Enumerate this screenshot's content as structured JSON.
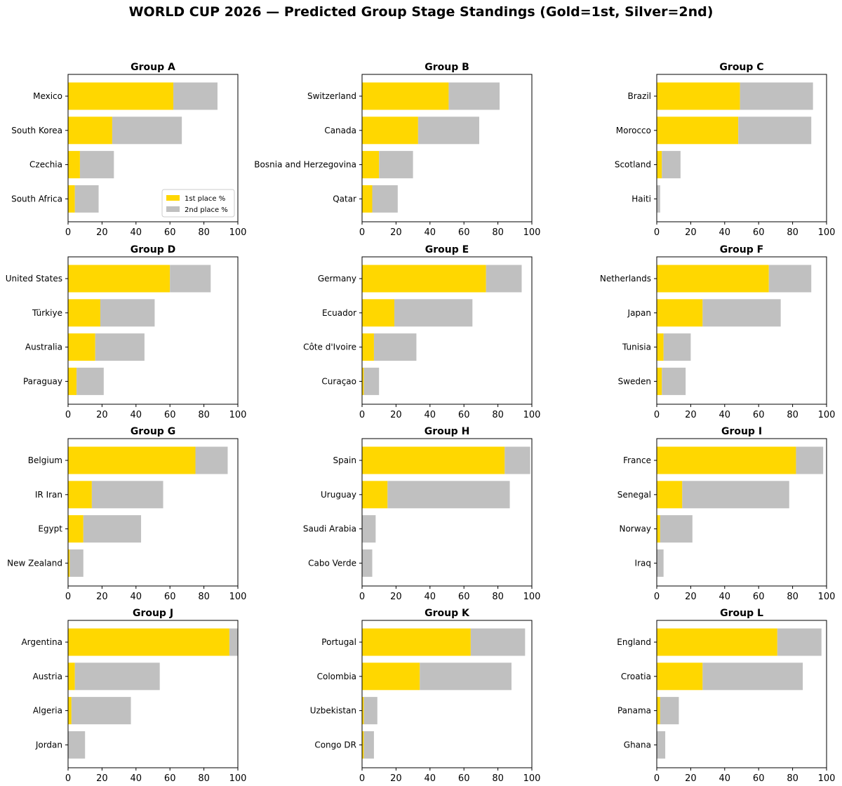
{
  "chart_data": {
    "title": "WORLD CUP 2026 — Predicted Group Stage Standings (Gold=1st, Silver=2nd)",
    "type": "bar",
    "orientation": "horizontal",
    "stacked": true,
    "xlim": [
      0,
      100
    ],
    "xticks": [
      0,
      20,
      40,
      60,
      80,
      100
    ],
    "series_names": [
      "1st place %",
      "2nd place %"
    ],
    "colors": {
      "first": "#FFD700",
      "second": "#C0C0C0"
    },
    "legend_position": "lower-right, Group A panel",
    "groups": [
      {
        "name": "Group A",
        "teams": [
          {
            "team": "Mexico",
            "first": 62,
            "second": 26
          },
          {
            "team": "South Korea",
            "first": 26,
            "second": 41
          },
          {
            "team": "Czechia",
            "first": 7,
            "second": 20
          },
          {
            "team": "South Africa",
            "first": 4,
            "second": 14
          }
        ]
      },
      {
        "name": "Group B",
        "teams": [
          {
            "team": "Switzerland",
            "first": 51,
            "second": 30
          },
          {
            "team": "Canada",
            "first": 33,
            "second": 36
          },
          {
            "team": "Bosnia and Herzegovina",
            "first": 10,
            "second": 20
          },
          {
            "team": "Qatar",
            "first": 6,
            "second": 15
          }
        ]
      },
      {
        "name": "Group C",
        "teams": [
          {
            "team": "Brazil",
            "first": 49,
            "second": 43
          },
          {
            "team": "Morocco",
            "first": 48,
            "second": 43
          },
          {
            "team": "Scotland",
            "first": 3,
            "second": 11
          },
          {
            "team": "Haiti",
            "first": 0,
            "second": 2
          }
        ]
      },
      {
        "name": "Group D",
        "teams": [
          {
            "team": "United States",
            "first": 60,
            "second": 24
          },
          {
            "team": "Türkiye",
            "first": 19,
            "second": 32
          },
          {
            "team": "Australia",
            "first": 16,
            "second": 29
          },
          {
            "team": "Paraguay",
            "first": 5,
            "second": 16
          }
        ]
      },
      {
        "name": "Group E",
        "teams": [
          {
            "team": "Germany",
            "first": 73,
            "second": 21
          },
          {
            "team": "Ecuador",
            "first": 19,
            "second": 46
          },
          {
            "team": "Côte d'Ivoire",
            "first": 7,
            "second": 25
          },
          {
            "team": "Curaçao",
            "first": 1,
            "second": 9
          }
        ]
      },
      {
        "name": "Group F",
        "teams": [
          {
            "team": "Netherlands",
            "first": 66,
            "second": 25
          },
          {
            "team": "Japan",
            "first": 27,
            "second": 46
          },
          {
            "team": "Tunisia",
            "first": 4,
            "second": 16
          },
          {
            "team": "Sweden",
            "first": 3,
            "second": 14
          }
        ]
      },
      {
        "name": "Group G",
        "teams": [
          {
            "team": "Belgium",
            "first": 75,
            "second": 19
          },
          {
            "team": "IR Iran",
            "first": 14,
            "second": 42
          },
          {
            "team": "Egypt",
            "first": 9,
            "second": 34
          },
          {
            "team": "New Zealand",
            "first": 1,
            "second": 8
          }
        ]
      },
      {
        "name": "Group H",
        "teams": [
          {
            "team": "Spain",
            "first": 84,
            "second": 15
          },
          {
            "team": "Uruguay",
            "first": 15,
            "second": 72
          },
          {
            "team": "Saudi Arabia",
            "first": 0,
            "second": 8
          },
          {
            "team": "Cabo Verde",
            "first": 0,
            "second": 6
          }
        ]
      },
      {
        "name": "Group I",
        "teams": [
          {
            "team": "France",
            "first": 82,
            "second": 16
          },
          {
            "team": "Senegal",
            "first": 15,
            "second": 63
          },
          {
            "team": "Norway",
            "first": 2,
            "second": 19
          },
          {
            "team": "Iraq",
            "first": 0,
            "second": 4
          }
        ]
      },
      {
        "name": "Group J",
        "teams": [
          {
            "team": "Argentina",
            "first": 95,
            "second": 5
          },
          {
            "team": "Austria",
            "first": 4,
            "second": 50
          },
          {
            "team": "Algeria",
            "first": 2,
            "second": 35
          },
          {
            "team": "Jordan",
            "first": 0,
            "second": 10
          }
        ]
      },
      {
        "name": "Group K",
        "teams": [
          {
            "team": "Portugal",
            "first": 64,
            "second": 32
          },
          {
            "team": "Colombia",
            "first": 34,
            "second": 54
          },
          {
            "team": "Uzbekistan",
            "first": 1,
            "second": 8
          },
          {
            "team": "Congo DR",
            "first": 1,
            "second": 6
          }
        ]
      },
      {
        "name": "Group L",
        "teams": [
          {
            "team": "England",
            "first": 71,
            "second": 26
          },
          {
            "team": "Croatia",
            "first": 27,
            "second": 59
          },
          {
            "team": "Panama",
            "first": 2,
            "second": 11
          },
          {
            "team": "Ghana",
            "first": 0,
            "second": 5
          }
        ]
      }
    ]
  }
}
